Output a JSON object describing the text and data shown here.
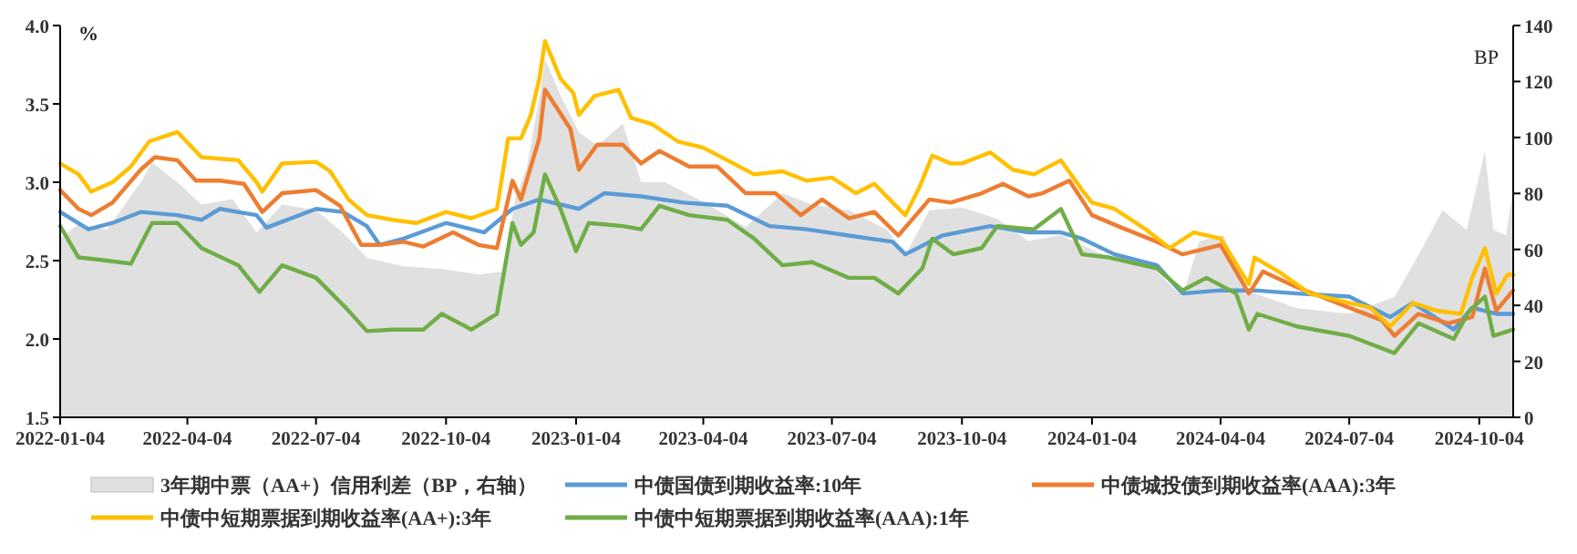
{
  "chart_data": {
    "type": "line",
    "ylabel": "%",
    "y2label": "BP",
    "xlim": [
      "2022-01-04",
      "2024-10-28"
    ],
    "xticks": [
      "2022-01-04",
      "2022-04-04",
      "2022-07-04",
      "2022-10-04",
      "2023-01-04",
      "2023-04-04",
      "2023-07-04",
      "2023-10-04",
      "2024-01-04",
      "2024-04-04",
      "2024-07-04",
      "2024-10-04"
    ],
    "ylim": [
      1.5,
      4.0
    ],
    "yticks": [
      1.5,
      {
        "value": 2,
        "label": "2.0"
      },
      2.5,
      {
        "value": 3,
        "label": "3.0"
      },
      3.5,
      {
        "value": 4,
        "label": "4.0"
      }
    ],
    "y2lim": [
      0,
      140
    ],
    "y2ticks": [
      0,
      20,
      40,
      60,
      80,
      100,
      120,
      140
    ],
    "legend": "bottom",
    "grid": false,
    "series": [
      {
        "name": "3年期中票（AA+）信用利差（BP，右轴）",
        "type": "area",
        "axis": "y2",
        "color": "#e0e0e0",
        "x": [
          "2022-01-04",
          "2022-01-17",
          "2022-02-06",
          "2022-03-02",
          "2022-03-10",
          "2022-03-28",
          "2022-04-14",
          "2022-05-06",
          "2022-05-23",
          "2022-06-10",
          "2022-07-04",
          "2022-07-23",
          "2022-08-09",
          "2022-09-04",
          "2022-10-01",
          "2022-10-27",
          "2022-11-13",
          "2022-11-22",
          "2022-11-30",
          "2022-12-10",
          "2022-12-13",
          "2022-12-24",
          "2023-01-06",
          "2023-01-19",
          "2023-02-06",
          "2023-02-19",
          "2023-03-08",
          "2023-04-04",
          "2023-05-04",
          "2023-05-30",
          "2023-06-20",
          "2023-07-16",
          "2023-08-12",
          "2023-08-25",
          "2023-09-11",
          "2023-10-04",
          "2023-10-29",
          "2023-11-20",
          "2023-12-13",
          "2024-01-12",
          "2024-02-11",
          "2024-03-08",
          "2024-03-20",
          "2024-04-06",
          "2024-04-24",
          "2024-05-28",
          "2024-07-04",
          "2024-08-05",
          "2024-08-22",
          "2024-09-08",
          "2024-09-25",
          "2024-10-08",
          "2024-10-14",
          "2024-10-23",
          "2024-10-28"
        ],
        "values": [
          64,
          69,
          67,
          84,
          91,
          84,
          76,
          78,
          66,
          76,
          74,
          66,
          57,
          54,
          53,
          51,
          52,
          78,
          89,
          117,
          128,
          115,
          102,
          97,
          105,
          84,
          84,
          77,
          68,
          80,
          76,
          74,
          67,
          58,
          74,
          75,
          71,
          63,
          65,
          58,
          56,
          43,
          63,
          65,
          45,
          39,
          37,
          43,
          58,
          74,
          67,
          95,
          67,
          65,
          82
        ]
      },
      {
        "name": "中债国债到期收益率:10年",
        "color": "#5b9bd5",
        "x": [
          "2022-01-04",
          "2022-01-24",
          "2022-02-10",
          "2022-03-02",
          "2022-03-28",
          "2022-04-14",
          "2022-04-27",
          "2022-05-23",
          "2022-05-30",
          "2022-07-04",
          "2022-07-23",
          "2022-08-09",
          "2022-08-18",
          "2022-09-04",
          "2022-10-04",
          "2022-10-31",
          "2022-11-20",
          "2022-12-09",
          "2023-01-06",
          "2023-01-24",
          "2023-02-19",
          "2023-03-21",
          "2023-04-21",
          "2023-05-21",
          "2023-06-16",
          "2023-07-16",
          "2023-08-16",
          "2023-08-25",
          "2023-09-20",
          "2023-10-24",
          "2023-11-20",
          "2023-12-13",
          "2023-12-28",
          "2024-01-20",
          "2024-02-19",
          "2024-03-08",
          "2024-04-04",
          "2024-04-28",
          "2024-05-28",
          "2024-07-04",
          "2024-08-02",
          "2024-08-18",
          "2024-09-16",
          "2024-09-29",
          "2024-10-16",
          "2024-10-28"
        ],
        "values": [
          2.81,
          2.7,
          2.74,
          2.81,
          2.79,
          2.76,
          2.83,
          2.79,
          2.71,
          2.83,
          2.81,
          2.72,
          2.6,
          2.64,
          2.74,
          2.68,
          2.83,
          2.89,
          2.83,
          2.93,
          2.91,
          2.87,
          2.85,
          2.72,
          2.7,
          2.66,
          2.62,
          2.54,
          2.66,
          2.72,
          2.68,
          2.68,
          2.64,
          2.54,
          2.47,
          2.29,
          2.31,
          2.31,
          2.29,
          2.27,
          2.14,
          2.23,
          2.06,
          2.2,
          2.16,
          2.16
        ]
      },
      {
        "name": "中债城投债到期收益率(AAA):3年",
        "color": "#ed7d31",
        "x": [
          "2022-01-04",
          "2022-01-17",
          "2022-01-26",
          "2022-02-10",
          "2022-03-02",
          "2022-03-12",
          "2022-03-28",
          "2022-04-10",
          "2022-04-27",
          "2022-05-14",
          "2022-05-27",
          "2022-06-10",
          "2022-07-04",
          "2022-07-21",
          "2022-08-05",
          "2022-08-18",
          "2022-09-04",
          "2022-09-18",
          "2022-10-09",
          "2022-10-27",
          "2022-11-09",
          "2022-11-20",
          "2022-11-26",
          "2022-12-09",
          "2022-12-13",
          "2022-12-31",
          "2023-01-06",
          "2023-01-19",
          "2023-02-06",
          "2023-02-19",
          "2023-03-04",
          "2023-03-25",
          "2023-04-14",
          "2023-05-04",
          "2023-05-25",
          "2023-06-12",
          "2023-06-27",
          "2023-07-16",
          "2023-08-03",
          "2023-08-20",
          "2023-09-11",
          "2023-09-26",
          "2023-10-18",
          "2023-11-02",
          "2023-11-20",
          "2023-11-30",
          "2023-12-19",
          "2024-01-04",
          "2024-01-25",
          "2024-02-19",
          "2024-03-08",
          "2024-04-04",
          "2024-04-24",
          "2024-05-04",
          "2024-05-28",
          "2024-07-04",
          "2024-07-27",
          "2024-08-05",
          "2024-08-22",
          "2024-09-12",
          "2024-09-29",
          "2024-10-08",
          "2024-10-16",
          "2024-10-28"
        ],
        "values": [
          2.95,
          2.83,
          2.79,
          2.87,
          3.08,
          3.16,
          3.14,
          3.01,
          3.01,
          2.99,
          2.81,
          2.93,
          2.95,
          2.85,
          2.6,
          2.6,
          2.62,
          2.59,
          2.68,
          2.6,
          2.58,
          3.01,
          2.89,
          3.28,
          3.59,
          3.34,
          3.08,
          3.24,
          3.24,
          3.12,
          3.2,
          3.1,
          3.1,
          2.93,
          2.93,
          2.79,
          2.89,
          2.77,
          2.81,
          2.66,
          2.89,
          2.87,
          2.93,
          2.99,
          2.91,
          2.93,
          3.01,
          2.79,
          2.71,
          2.62,
          2.54,
          2.6,
          2.29,
          2.43,
          2.33,
          2.2,
          2.12,
          2.02,
          2.16,
          2.1,
          2.14,
          2.45,
          2.18,
          2.31
        ]
      },
      {
        "name": "中债中短期票据到期收益率(AA+):3年",
        "color": "#ffc000",
        "x": [
          "2022-01-04",
          "2022-01-17",
          "2022-01-26",
          "2022-02-10",
          "2022-02-23",
          "2022-03-08",
          "2022-03-28",
          "2022-04-14",
          "2022-04-27",
          "2022-05-10",
          "2022-05-23",
          "2022-05-27",
          "2022-06-10",
          "2022-07-04",
          "2022-07-14",
          "2022-07-27",
          "2022-08-09",
          "2022-08-27",
          "2022-09-13",
          "2022-10-04",
          "2022-10-22",
          "2022-11-09",
          "2022-11-17",
          "2022-11-26",
          "2022-12-03",
          "2022-12-09",
          "2022-12-13",
          "2022-12-24",
          "2023-01-02",
          "2023-01-06",
          "2023-01-17",
          "2023-02-03",
          "2023-02-12",
          "2023-02-27",
          "2023-03-17",
          "2023-04-04",
          "2023-04-21",
          "2023-05-10",
          "2023-05-30",
          "2023-06-16",
          "2023-07-04",
          "2023-07-21",
          "2023-08-03",
          "2023-08-16",
          "2023-08-25",
          "2023-09-04",
          "2023-09-13",
          "2023-09-26",
          "2023-10-04",
          "2023-10-24",
          "2023-11-09",
          "2023-11-24",
          "2023-12-13",
          "2023-12-28",
          "2024-01-04",
          "2024-01-20",
          "2024-02-11",
          "2024-02-28",
          "2024-03-16",
          "2024-04-04",
          "2024-04-24",
          "2024-04-28",
          "2024-05-15",
          "2024-06-06",
          "2024-07-04",
          "2024-07-19",
          "2024-08-02",
          "2024-08-18",
          "2024-09-04",
          "2024-09-21",
          "2024-09-29",
          "2024-10-08",
          "2024-10-16",
          "2024-10-24",
          "2024-10-28"
        ],
        "values": [
          3.12,
          3.05,
          2.94,
          3.0,
          3.1,
          3.26,
          3.32,
          3.16,
          3.15,
          3.14,
          3.0,
          2.94,
          3.12,
          3.13,
          3.07,
          2.89,
          2.79,
          2.76,
          2.74,
          2.81,
          2.77,
          2.83,
          3.28,
          3.28,
          3.43,
          3.66,
          3.9,
          3.66,
          3.57,
          3.43,
          3.55,
          3.59,
          3.41,
          3.37,
          3.26,
          3.22,
          3.14,
          3.05,
          3.07,
          3.01,
          3.03,
          2.93,
          2.99,
          2.87,
          2.79,
          2.97,
          3.17,
          3.12,
          3.12,
          3.19,
          3.08,
          3.05,
          3.14,
          2.95,
          2.87,
          2.83,
          2.7,
          2.58,
          2.68,
          2.64,
          2.35,
          2.52,
          2.43,
          2.29,
          2.23,
          2.2,
          2.08,
          2.23,
          2.18,
          2.16,
          2.39,
          2.58,
          2.29,
          2.41,
          2.41
        ]
      },
      {
        "name": "中债中短期票据到期收益率(AAA):1年",
        "color": "#70ad47",
        "x": [
          "2022-01-04",
          "2022-01-17",
          "2022-02-06",
          "2022-02-23",
          "2022-03-10",
          "2022-03-28",
          "2022-04-14",
          "2022-05-10",
          "2022-05-25",
          "2022-06-10",
          "2022-07-04",
          "2022-07-25",
          "2022-08-09",
          "2022-08-27",
          "2022-09-18",
          "2022-10-01",
          "2022-10-22",
          "2022-11-09",
          "2022-11-20",
          "2022-11-26",
          "2022-12-05",
          "2022-12-13",
          "2022-12-24",
          "2023-01-04",
          "2023-01-13",
          "2023-02-06",
          "2023-02-19",
          "2023-03-04",
          "2023-03-25",
          "2023-04-21",
          "2023-05-10",
          "2023-05-30",
          "2023-06-20",
          "2023-07-16",
          "2023-08-03",
          "2023-08-20",
          "2023-09-06",
          "2023-09-13",
          "2023-09-28",
          "2023-10-18",
          "2023-10-29",
          "2023-11-24",
          "2023-12-13",
          "2023-12-28",
          "2024-01-16",
          "2024-02-19",
          "2024-03-08",
          "2024-03-25",
          "2024-04-15",
          "2024-04-24",
          "2024-04-30",
          "2024-05-28",
          "2024-07-04",
          "2024-08-05",
          "2024-08-22",
          "2024-09-16",
          "2024-09-27",
          "2024-10-08",
          "2024-10-14",
          "2024-10-28"
        ],
        "values": [
          2.72,
          2.52,
          2.5,
          2.48,
          2.74,
          2.74,
          2.58,
          2.47,
          2.3,
          2.47,
          2.39,
          2.2,
          2.05,
          2.06,
          2.06,
          2.16,
          2.06,
          2.16,
          2.74,
          2.6,
          2.68,
          3.05,
          2.83,
          2.56,
          2.74,
          2.72,
          2.7,
          2.85,
          2.79,
          2.76,
          2.64,
          2.47,
          2.49,
          2.39,
          2.39,
          2.29,
          2.45,
          2.64,
          2.54,
          2.58,
          2.72,
          2.7,
          2.83,
          2.54,
          2.52,
          2.45,
          2.31,
          2.39,
          2.29,
          2.06,
          2.16,
          2.08,
          2.02,
          1.91,
          2.1,
          2.0,
          2.18,
          2.27,
          2.02,
          2.06
        ]
      }
    ]
  }
}
